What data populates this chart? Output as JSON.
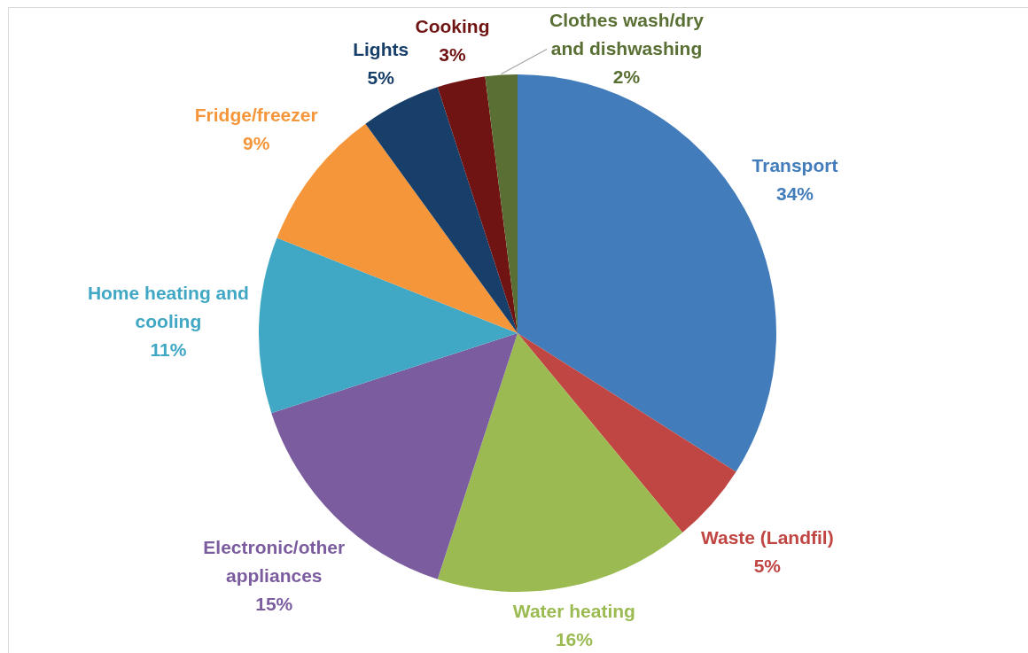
{
  "chart_data": {
    "type": "pie",
    "categories": [
      "Transport",
      "Waste (Landfil)",
      "Water heating",
      "Electronic/other appliances",
      "Home heating and cooling",
      "Fridge/freezer",
      "Lights",
      "Cooking",
      "Clothes wash/dry and dishwashing"
    ],
    "values": [
      34,
      5,
      16,
      15,
      11,
      9,
      5,
      3,
      2
    ],
    "value_labels": [
      "34%",
      "5%",
      "16%",
      "15%",
      "11%",
      "9%",
      "5%",
      "3%",
      "2%"
    ],
    "colors": [
      "#427cba",
      "#c04643",
      "#9bbb52",
      "#7b5c9e",
      "#40a8c4",
      "#f5963a",
      "#173f6a",
      "#6f1413",
      "#596f33"
    ]
  }
}
